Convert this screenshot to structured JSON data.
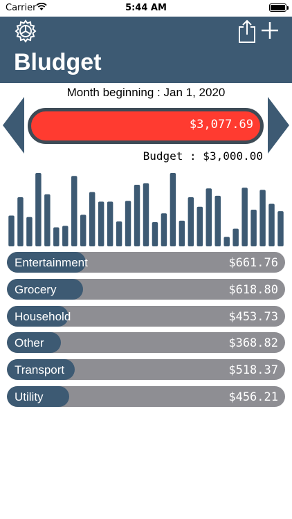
{
  "status_bar": {
    "carrier": "Carrier",
    "time": "5:44 AM"
  },
  "header": {
    "title": "Bludget",
    "icons": [
      "gear-icon",
      "share-icon",
      "plus-icon"
    ]
  },
  "period": {
    "month_beginning": "Month beginning : Jan 1, 2020",
    "spent": "$3,077.69",
    "budget": "Budget : $3,000.00"
  },
  "colors": {
    "accent": "#3d5a73",
    "over_budget": "#ff3b30",
    "track": "#8e8e93"
  },
  "chart_data": {
    "type": "bar",
    "values": [
      42,
      67,
      40,
      100,
      71,
      26,
      28,
      96,
      43,
      74,
      61,
      61,
      34,
      62,
      84,
      86,
      33,
      45,
      100,
      35,
      67,
      54,
      79,
      69,
      13,
      24,
      80,
      50,
      77,
      58,
      48
    ],
    "ylim": [
      0,
      100
    ],
    "grid": false
  },
  "categories": [
    {
      "name": "Entertainment",
      "amount": "$661.76",
      "fraction": 0.21
    },
    {
      "name": "Grocery",
      "amount": "$618.80",
      "fraction": 0.2
    },
    {
      "name": "Household",
      "amount": "$453.73",
      "fraction": 0.147
    },
    {
      "name": "Other",
      "amount": "$368.82",
      "fraction": 0.12
    },
    {
      "name": "Transport",
      "amount": "$518.37",
      "fraction": 0.168
    },
    {
      "name": "Utility",
      "amount": "$456.21",
      "fraction": 0.148
    }
  ]
}
